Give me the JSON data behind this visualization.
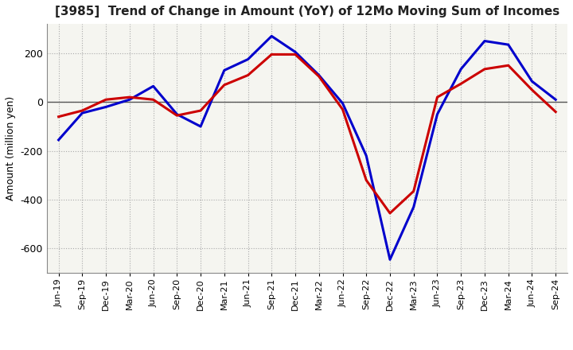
{
  "title": "[3985]  Trend of Change in Amount (YoY) of 12Mo Moving Sum of Incomes",
  "ylabel": "Amount (million yen)",
  "ylim": [
    -700,
    320
  ],
  "yticks": [
    200,
    0,
    -200,
    -400,
    -600
  ],
  "background_color": "#ffffff",
  "plot_bg_color": "#f5f5f0",
  "grid_color": "#aaaaaa",
  "ordinary_income_color": "#0000cc",
  "net_income_color": "#cc0000",
  "dates": [
    "Jun-19",
    "Sep-19",
    "Dec-19",
    "Mar-20",
    "Jun-20",
    "Sep-20",
    "Dec-20",
    "Mar-21",
    "Jun-21",
    "Sep-21",
    "Dec-21",
    "Mar-22",
    "Jun-22",
    "Sep-22",
    "Dec-22",
    "Mar-23",
    "Jun-23",
    "Sep-23",
    "Dec-23",
    "Mar-24",
    "Jun-24",
    "Sep-24"
  ],
  "ordinary_income": [
    -155,
    -45,
    -20,
    10,
    65,
    -50,
    -100,
    130,
    175,
    270,
    205,
    110,
    -5,
    -220,
    -645,
    -430,
    -50,
    135,
    250,
    235,
    85,
    10
  ],
  "net_income": [
    -60,
    -35,
    10,
    20,
    10,
    -55,
    -35,
    70,
    110,
    195,
    195,
    105,
    -30,
    -320,
    -455,
    -365,
    20,
    75,
    135,
    150,
    50,
    -40
  ]
}
